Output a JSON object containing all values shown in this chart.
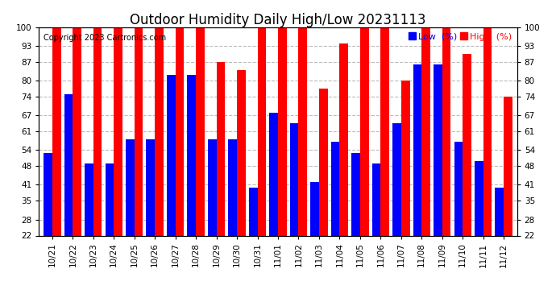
{
  "title": "Outdoor Humidity Daily High/Low 20231113",
  "copyright": "Copyright 2023 Cartronics.com",
  "legend_low": "Low  (%)",
  "legend_high": "High  (%)",
  "categories": [
    "10/21",
    "10/22",
    "10/23",
    "10/24",
    "10/25",
    "10/26",
    "10/27",
    "10/28",
    "10/29",
    "10/30",
    "10/31",
    "11/01",
    "11/02",
    "11/03",
    "11/04",
    "11/05",
    "11/06",
    "11/07",
    "11/08",
    "11/09",
    "11/10",
    "11/11",
    "11/12"
  ],
  "high_values": [
    100,
    100,
    100,
    100,
    100,
    100,
    100,
    100,
    87,
    84,
    100,
    100,
    100,
    77,
    94,
    100,
    100,
    80,
    100,
    100,
    90,
    100,
    74
  ],
  "low_values": [
    53,
    75,
    49,
    49,
    58,
    58,
    82,
    82,
    58,
    58,
    40,
    68,
    64,
    42,
    57,
    53,
    49,
    64,
    86,
    86,
    57,
    50,
    40
  ],
  "ymin": 22,
  "ymax": 100,
  "yticks": [
    22,
    28,
    35,
    41,
    48,
    54,
    61,
    67,
    74,
    80,
    87,
    93,
    100
  ],
  "bar_width": 0.42,
  "high_color": "#ff0000",
  "low_color": "#0000ff",
  "bg_color": "#ffffff",
  "grid_color": "#bbbbbb",
  "title_fontsize": 12,
  "tick_fontsize": 7.5,
  "copyright_fontsize": 7
}
